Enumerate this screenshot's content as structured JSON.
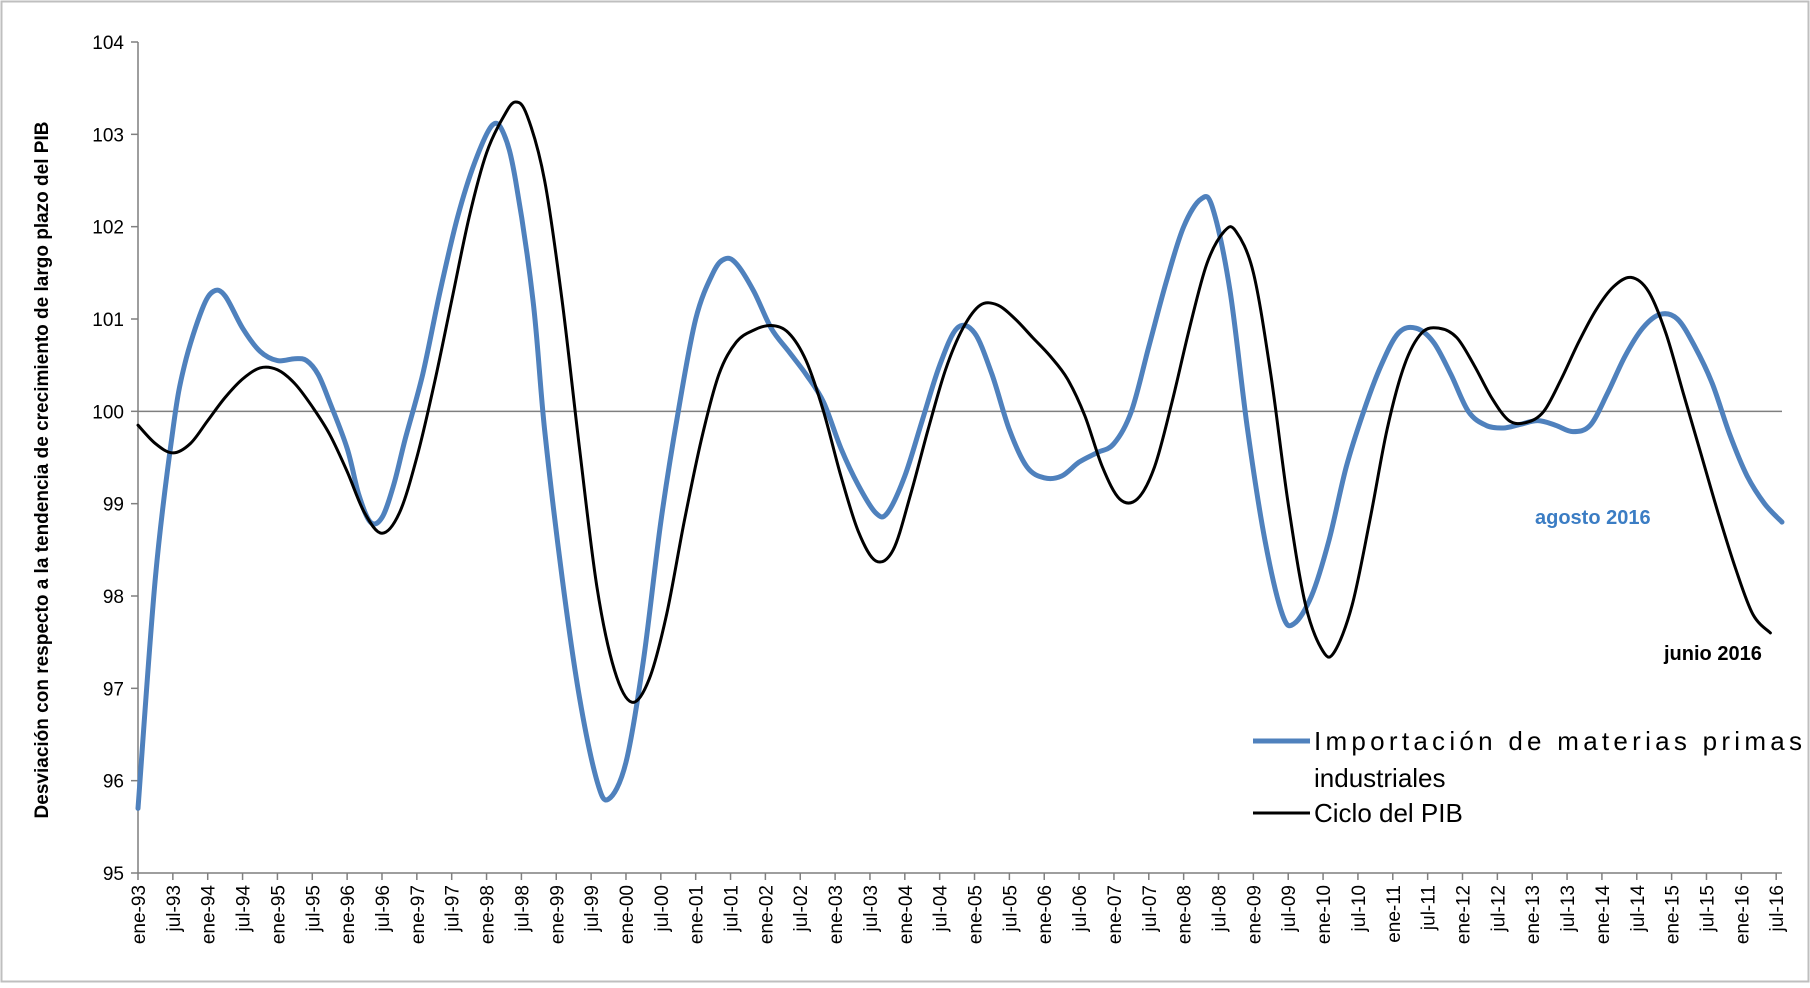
{
  "chart_data": {
    "type": "line",
    "title": "",
    "xlabel": "",
    "ylabel": "Desviación con respecto a la tendencia de crecimiento de largo plazo del PIB",
    "ylim": [
      95,
      104
    ],
    "yticks": [
      "95",
      "96",
      "97",
      "98",
      "99",
      "100",
      "101",
      "102",
      "103",
      "104"
    ],
    "grid": false,
    "reference_line": 100,
    "x_tick_labels": [
      "ene-93",
      "jul-93",
      "ene-94",
      "jul-94",
      "ene-95",
      "jul-95",
      "ene-96",
      "jul-96",
      "ene-97",
      "jul-97",
      "ene-98",
      "jul-98",
      "ene-99",
      "jul-99",
      "ene-00",
      "jul-00",
      "ene-01",
      "jul-01",
      "ene-02",
      "jul-02",
      "ene-03",
      "jul-03",
      "ene-04",
      "jul-04",
      "ene-05",
      "jul-05",
      "ene-06",
      "jul-06",
      "ene-07",
      "jul-07",
      "ene-08",
      "jul-08",
      "ene-09",
      "jul-09",
      "ene-10",
      "jul-10",
      "ene-11",
      "jul-11",
      "ene-12",
      "jul-12",
      "ene-13",
      "jul-13",
      "ene-14",
      "jul-14",
      "ene-15",
      "jul-15",
      "ene-16",
      "jul-16"
    ],
    "legend_position": "bottom-right",
    "series": [
      {
        "name": "Importación de materias primas industriales",
        "color": "#4f81bd",
        "points": [
          [
            "1993-01",
            95.7
          ],
          [
            "1993-04",
            98.2
          ],
          [
            "1993-07",
            99.8
          ],
          [
            "1993-09",
            100.5
          ],
          [
            "1993-12",
            101.1
          ],
          [
            "1994-02",
            101.3
          ],
          [
            "1994-04",
            101.25
          ],
          [
            "1994-07",
            100.9
          ],
          [
            "1994-10",
            100.65
          ],
          [
            "1995-01",
            100.55
          ],
          [
            "1995-04",
            100.57
          ],
          [
            "1995-06",
            100.55
          ],
          [
            "1995-08",
            100.4
          ],
          [
            "1995-10",
            100.1
          ],
          [
            "1996-01",
            99.6
          ],
          [
            "1996-03",
            99.1
          ],
          [
            "1996-05",
            98.8
          ],
          [
            "1996-07",
            98.85
          ],
          [
            "1996-09",
            99.2
          ],
          [
            "1996-11",
            99.7
          ],
          [
            "1997-02",
            100.4
          ],
          [
            "1997-05",
            101.3
          ],
          [
            "1997-08",
            102.1
          ],
          [
            "1997-11",
            102.7
          ],
          [
            "1998-02",
            103.1
          ],
          [
            "1998-04",
            103.0
          ],
          [
            "1998-06",
            102.5
          ],
          [
            "1998-09",
            101.2
          ],
          [
            "1998-11",
            99.8
          ],
          [
            "1999-02",
            98.2
          ],
          [
            "1999-05",
            96.9
          ],
          [
            "1999-08",
            96.0
          ],
          [
            "1999-10",
            95.8
          ],
          [
            "2000-01",
            96.2
          ],
          [
            "2000-04",
            97.3
          ],
          [
            "2000-07",
            98.8
          ],
          [
            "2000-10",
            100.0
          ],
          [
            "2001-01",
            101.0
          ],
          [
            "2001-04",
            101.5
          ],
          [
            "2001-06",
            101.65
          ],
          [
            "2001-08",
            101.6
          ],
          [
            "2001-11",
            101.3
          ],
          [
            "2002-02",
            100.9
          ],
          [
            "2002-05",
            100.65
          ],
          [
            "2002-08",
            100.4
          ],
          [
            "2002-11",
            100.1
          ],
          [
            "2003-02",
            99.6
          ],
          [
            "2003-05",
            99.2
          ],
          [
            "2003-08",
            98.9
          ],
          [
            "2003-10",
            98.9
          ],
          [
            "2004-01",
            99.3
          ],
          [
            "2004-04",
            99.9
          ],
          [
            "2004-07",
            100.5
          ],
          [
            "2004-10",
            100.9
          ],
          [
            "2005-01",
            100.85
          ],
          [
            "2005-04",
            100.4
          ],
          [
            "2005-07",
            99.8
          ],
          [
            "2005-10",
            99.4
          ],
          [
            "2006-01",
            99.28
          ],
          [
            "2006-04",
            99.3
          ],
          [
            "2006-07",
            99.45
          ],
          [
            "2006-10",
            99.55
          ],
          [
            "2007-01",
            99.65
          ],
          [
            "2007-04",
            100.0
          ],
          [
            "2007-07",
            100.7
          ],
          [
            "2007-10",
            101.4
          ],
          [
            "2008-01",
            102.0
          ],
          [
            "2008-04",
            102.3
          ],
          [
            "2008-06",
            102.2
          ],
          [
            "2008-09",
            101.3
          ],
          [
            "2008-12",
            99.8
          ],
          [
            "2009-03",
            98.6
          ],
          [
            "2009-06",
            97.8
          ],
          [
            "2009-08",
            97.7
          ],
          [
            "2009-11",
            98.0
          ],
          [
            "2010-02",
            98.6
          ],
          [
            "2010-05",
            99.4
          ],
          [
            "2010-08",
            100.0
          ],
          [
            "2010-11",
            100.5
          ],
          [
            "2011-02",
            100.85
          ],
          [
            "2011-05",
            100.9
          ],
          [
            "2011-08",
            100.75
          ],
          [
            "2011-11",
            100.4
          ],
          [
            "2012-02",
            100.0
          ],
          [
            "2012-05",
            99.85
          ],
          [
            "2012-08",
            99.82
          ],
          [
            "2012-11",
            99.86
          ],
          [
            "2013-02",
            99.9
          ],
          [
            "2013-05",
            99.85
          ],
          [
            "2013-08",
            99.78
          ],
          [
            "2013-11",
            99.85
          ],
          [
            "2014-02",
            100.2
          ],
          [
            "2014-05",
            100.6
          ],
          [
            "2014-08",
            100.9
          ],
          [
            "2014-11",
            101.05
          ],
          [
            "2015-02",
            101.0
          ],
          [
            "2015-05",
            100.7
          ],
          [
            "2015-08",
            100.3
          ],
          [
            "2015-11",
            99.75
          ],
          [
            "2016-02",
            99.3
          ],
          [
            "2016-05",
            99.0
          ],
          [
            "2016-08",
            98.8
          ]
        ]
      },
      {
        "name": "Ciclo del PIB",
        "color": "#000000",
        "points": [
          [
            "1993-01",
            99.85
          ],
          [
            "1993-04",
            99.65
          ],
          [
            "1993-07",
            99.55
          ],
          [
            "1993-10",
            99.65
          ],
          [
            "1994-01",
            99.9
          ],
          [
            "1994-04",
            100.15
          ],
          [
            "1994-07",
            100.35
          ],
          [
            "1994-10",
            100.47
          ],
          [
            "1995-01",
            100.45
          ],
          [
            "1995-04",
            100.3
          ],
          [
            "1995-07",
            100.05
          ],
          [
            "1995-10",
            99.75
          ],
          [
            "1996-01",
            99.35
          ],
          [
            "1996-04",
            98.9
          ],
          [
            "1996-07",
            98.68
          ],
          [
            "1996-10",
            98.9
          ],
          [
            "1997-01",
            99.5
          ],
          [
            "1997-04",
            100.3
          ],
          [
            "1997-07",
            101.2
          ],
          [
            "1997-10",
            102.1
          ],
          [
            "1998-01",
            102.8
          ],
          [
            "1998-04",
            103.2
          ],
          [
            "1998-06",
            103.35
          ],
          [
            "1998-08",
            103.2
          ],
          [
            "1998-11",
            102.5
          ],
          [
            "1999-02",
            101.2
          ],
          [
            "1999-05",
            99.6
          ],
          [
            "1999-08",
            98.1
          ],
          [
            "1999-11",
            97.2
          ],
          [
            "2000-02",
            96.85
          ],
          [
            "2000-05",
            97.1
          ],
          [
            "2000-08",
            97.8
          ],
          [
            "2000-11",
            98.8
          ],
          [
            "2001-02",
            99.7
          ],
          [
            "2001-05",
            100.4
          ],
          [
            "2001-08",
            100.75
          ],
          [
            "2001-11",
            100.88
          ],
          [
            "2002-02",
            100.93
          ],
          [
            "2002-05",
            100.85
          ],
          [
            "2002-08",
            100.55
          ],
          [
            "2002-11",
            100.0
          ],
          [
            "2003-02",
            99.3
          ],
          [
            "2003-05",
            98.7
          ],
          [
            "2003-08",
            98.38
          ],
          [
            "2003-11",
            98.5
          ],
          [
            "2004-02",
            99.1
          ],
          [
            "2004-05",
            99.8
          ],
          [
            "2004-08",
            100.45
          ],
          [
            "2004-11",
            100.9
          ],
          [
            "2005-02",
            101.15
          ],
          [
            "2005-05",
            101.15
          ],
          [
            "2005-08",
            101.0
          ],
          [
            "2005-11",
            100.8
          ],
          [
            "2006-02",
            100.6
          ],
          [
            "2006-05",
            100.35
          ],
          [
            "2006-08",
            99.95
          ],
          [
            "2006-11",
            99.4
          ],
          [
            "2007-02",
            99.05
          ],
          [
            "2007-05",
            99.05
          ],
          [
            "2007-08",
            99.4
          ],
          [
            "2007-11",
            100.1
          ],
          [
            "2008-02",
            100.9
          ],
          [
            "2008-05",
            101.6
          ],
          [
            "2008-08",
            101.95
          ],
          [
            "2008-10",
            101.95
          ],
          [
            "2009-01",
            101.5
          ],
          [
            "2009-04",
            100.4
          ],
          [
            "2009-07",
            99.0
          ],
          [
            "2009-10",
            97.9
          ],
          [
            "2010-01",
            97.4
          ],
          [
            "2010-03",
            97.4
          ],
          [
            "2010-06",
            97.9
          ],
          [
            "2010-09",
            98.8
          ],
          [
            "2010-12",
            99.8
          ],
          [
            "2011-03",
            100.5
          ],
          [
            "2011-06",
            100.85
          ],
          [
            "2011-09",
            100.9
          ],
          [
            "2011-12",
            100.8
          ],
          [
            "2012-03",
            100.5
          ],
          [
            "2012-06",
            100.15
          ],
          [
            "2012-09",
            99.9
          ],
          [
            "2012-12",
            99.88
          ],
          [
            "2013-03",
            100.0
          ],
          [
            "2013-06",
            100.35
          ],
          [
            "2013-09",
            100.75
          ],
          [
            "2013-12",
            101.1
          ],
          [
            "2014-03",
            101.35
          ],
          [
            "2014-06",
            101.45
          ],
          [
            "2014-09",
            101.3
          ],
          [
            "2014-12",
            100.85
          ],
          [
            "2015-03",
            100.2
          ],
          [
            "2015-06",
            99.55
          ],
          [
            "2015-09",
            98.9
          ],
          [
            "2015-12",
            98.3
          ],
          [
            "2016-03",
            97.8
          ],
          [
            "2016-06",
            97.6
          ]
        ]
      }
    ],
    "annotations": [
      {
        "text": "agosto 2016",
        "color": "#3b7dc4"
      },
      {
        "text": "junio 2016",
        "color": "#000000"
      }
    ]
  }
}
